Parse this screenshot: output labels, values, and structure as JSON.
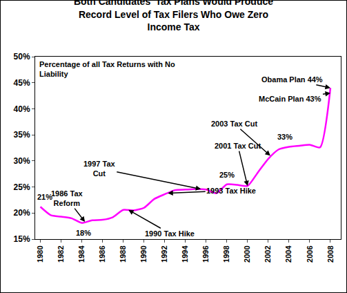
{
  "chart_data": {
    "type": "line",
    "title": "Both Candidates' Tax Plans Would Produce Record Level of Tax Filers Who Owe Zero Income Tax",
    "ylabel": "Percentage of all Tax Returns with No Liability",
    "x": [
      1980,
      1981,
      1982,
      1983,
      1984,
      1985,
      1986,
      1987,
      1988,
      1989,
      1990,
      1991,
      1992,
      1993,
      1994,
      1995,
      1996,
      1997,
      1998,
      1999,
      2000,
      2001,
      2002,
      2003,
      2004,
      2005,
      2006,
      2007,
      2008
    ],
    "values": [
      21.2,
      19.6,
      19.3,
      19.0,
      18.1,
      18.6,
      18.7,
      19.2,
      20.6,
      20.5,
      21.0,
      22.7,
      23.6,
      24.4,
      24.5,
      24.6,
      24.5,
      23.8,
      25.5,
      25.4,
      25.2,
      27.8,
      30.4,
      32.2,
      32.7,
      32.9,
      33.1,
      32.6,
      44
    ],
    "color": "#ff00ff",
    "xlim": [
      1979.5,
      2009
    ],
    "xticks": [
      1980,
      1982,
      1984,
      1986,
      1988,
      1990,
      1992,
      1994,
      1996,
      1998,
      2000,
      2002,
      2004,
      2006,
      2008
    ],
    "ylim": [
      15,
      50
    ],
    "yticks": [
      {
        "value": 15,
        "label": "15%"
      },
      {
        "value": 20,
        "label": "20%"
      },
      {
        "value": 25,
        "label": "25%"
      },
      {
        "value": 30,
        "label": "30%"
      },
      {
        "value": 35,
        "label": "35%"
      },
      {
        "value": 40,
        "label": "40%"
      },
      {
        "value": 45,
        "label": "45%"
      },
      {
        "value": 50,
        "label": "50%"
      }
    ],
    "grid": false,
    "point_labels": [
      {
        "text": "21%",
        "x": 1980,
        "y": 21.2
      },
      {
        "text": "18%",
        "x": 1984,
        "y": 18.1
      },
      {
        "text": "25%",
        "x": 1998,
        "y": 25.5
      },
      {
        "text": "33%",
        "x": 2004,
        "y": 32.7
      }
    ],
    "annotations": [
      {
        "text": "1986 Tax Reform",
        "x": 1984.3,
        "y": 18.3
      },
      {
        "text": "1990 Tax Hike",
        "x": 1988.5,
        "y": 20.6
      },
      {
        "text": "1997 Tax Cut",
        "x": 1995.5,
        "y": 24.6
      },
      {
        "text": "1993 Tax Hike",
        "x": 1992.3,
        "y": 23.8
      },
      {
        "text": "2001 Tax Cut",
        "x": 2000,
        "y": 25.2
      },
      {
        "text": "2003 Tax Cut",
        "x": 2002.2,
        "y": 31.0
      },
      {
        "text": "Obama Plan 44%",
        "x": 2008,
        "y": 44
      },
      {
        "text": "McCain Plan 43%",
        "x": 2008,
        "y": 43
      }
    ]
  }
}
